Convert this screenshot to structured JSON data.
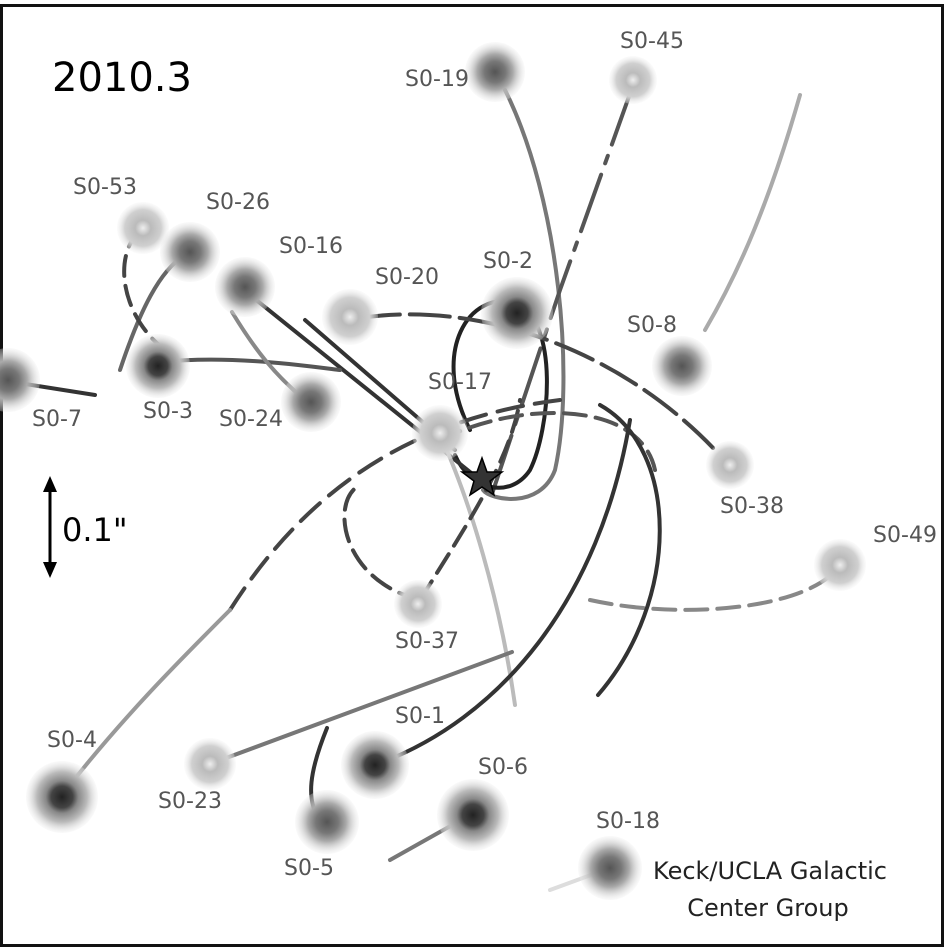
{
  "epoch": "2010.3",
  "scale_label": "0.1\"",
  "credit": [
    "Keck/UCLA Galactic",
    "Center Group"
  ],
  "stars": [
    {
      "label": "S0-19"
    },
    {
      "label": "S0-45"
    },
    {
      "label": "S0-53"
    },
    {
      "label": "S0-26"
    },
    {
      "label": "S0-16"
    },
    {
      "label": "S0-20"
    },
    {
      "label": "S0-2"
    },
    {
      "label": "S0-8"
    },
    {
      "label": "S0-7"
    },
    {
      "label": "S0-3"
    },
    {
      "label": "S0-24"
    },
    {
      "label": "S0-17"
    },
    {
      "label": "S0-38"
    },
    {
      "label": "S0-49"
    },
    {
      "label": "S0-37"
    },
    {
      "label": "S0-1"
    },
    {
      "label": "S0-4"
    },
    {
      "label": "S0-23"
    },
    {
      "label": "S0-6"
    },
    {
      "label": "S0-5"
    },
    {
      "label": "S0-18"
    }
  ]
}
